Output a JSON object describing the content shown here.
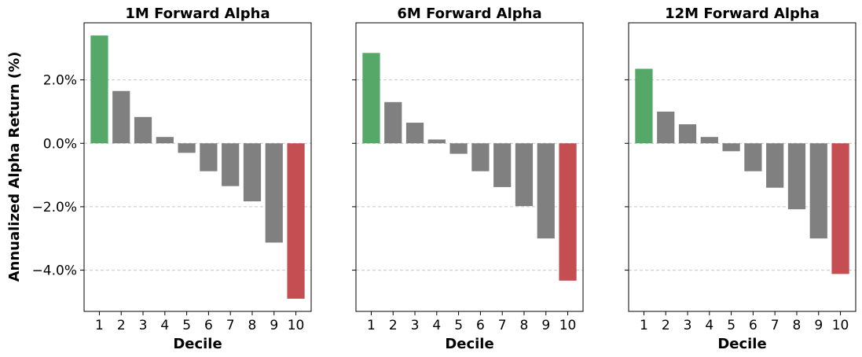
{
  "colors": {
    "top": "#55a868",
    "middle": "#808080",
    "bottom": "#c44e52",
    "grid": "#c8c8c8"
  },
  "ylabel": "Annualized Alpha Return (%)",
  "xlabel": "Decile",
  "chart_data": [
    {
      "type": "bar",
      "title": "1M Forward Alpha",
      "xlabel": "Decile",
      "ylabel": "Annualized Alpha Return (%)",
      "categories": [
        "1",
        "2",
        "3",
        "4",
        "5",
        "6",
        "7",
        "8",
        "9",
        "10"
      ],
      "values": [
        3.4,
        1.65,
        0.83,
        0.2,
        -0.3,
        -0.88,
        -1.35,
        -1.83,
        -3.13,
        -4.9
      ],
      "ylim": [
        -5.3,
        3.8
      ],
      "yticks": [
        2.0,
        0.0,
        -2.0,
        -4.0
      ],
      "ytick_labels": [
        "2.0%",
        "0.0%",
        "−2.0%",
        "−4.0%"
      ],
      "grid": "y, dashed"
    },
    {
      "type": "bar",
      "title": "6M Forward Alpha",
      "xlabel": "Decile",
      "categories": [
        "1",
        "2",
        "3",
        "4",
        "5",
        "6",
        "7",
        "8",
        "9",
        "10"
      ],
      "values": [
        2.85,
        1.3,
        0.65,
        0.12,
        -0.33,
        -0.88,
        -1.38,
        -1.98,
        -3.0,
        -4.33
      ],
      "ylim": [
        -5.3,
        3.8
      ],
      "yticks": [
        2.0,
        0.0,
        -2.0,
        -4.0
      ],
      "grid": "y, dashed"
    },
    {
      "type": "bar",
      "title": "12M Forward Alpha",
      "xlabel": "Decile",
      "categories": [
        "1",
        "2",
        "3",
        "4",
        "5",
        "6",
        "7",
        "8",
        "9",
        "10"
      ],
      "values": [
        2.35,
        1.0,
        0.6,
        0.2,
        -0.25,
        -0.88,
        -1.4,
        -2.08,
        -3.0,
        -4.12
      ],
      "ylim": [
        -5.3,
        3.8
      ],
      "yticks": [
        2.0,
        0.0,
        -2.0,
        -4.0
      ],
      "grid": "y, dashed"
    }
  ]
}
